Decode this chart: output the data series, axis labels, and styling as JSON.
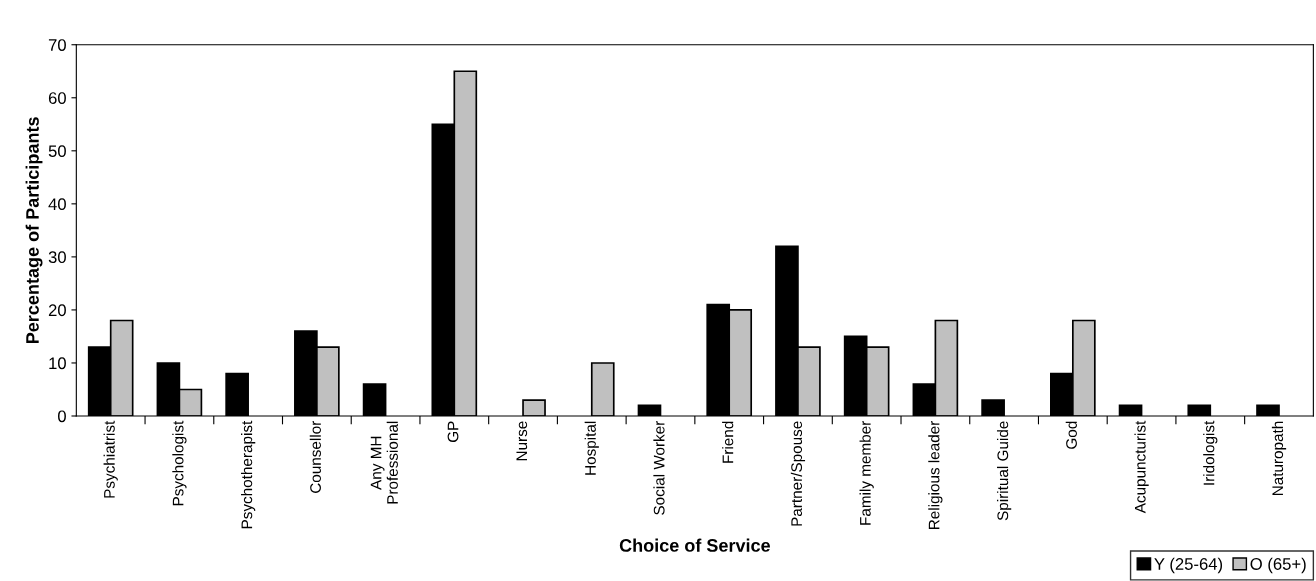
{
  "chart_data": {
    "type": "bar",
    "xlabel": "Choice of Service",
    "ylabel": "Percentage of Participants",
    "categories": [
      "Psychiatrist",
      "Psychologist",
      "Psychotherapist",
      "Counsellor",
      "Any MH\nProfessional",
      "GP",
      "Nurse",
      "Hospital",
      "Social Worker",
      "Friend",
      "Partner/Spouse",
      "Family member",
      "Religious leader",
      "Spiritual Guide",
      "God",
      "Acupuncturist",
      "Iridologist",
      "Naturopath"
    ],
    "series": [
      {
        "name": "Y (25-64)",
        "color": "#000000",
        "values": [
          13,
          10,
          8,
          16,
          6,
          55,
          0,
          0,
          2,
          21,
          32,
          15,
          6,
          3,
          8,
          2,
          2,
          2
        ]
      },
      {
        "name": "O (65+)",
        "color": "#c0c0c0",
        "values": [
          18,
          5,
          0,
          13,
          0,
          65,
          3,
          10,
          0,
          20,
          13,
          13,
          18,
          0,
          18,
          0,
          0,
          0
        ]
      }
    ],
    "ylim": [
      0,
      70
    ],
    "yticks": [
      0,
      10,
      20,
      30,
      40,
      50,
      60,
      70
    ],
    "grid": false,
    "legend": "bottom right"
  }
}
